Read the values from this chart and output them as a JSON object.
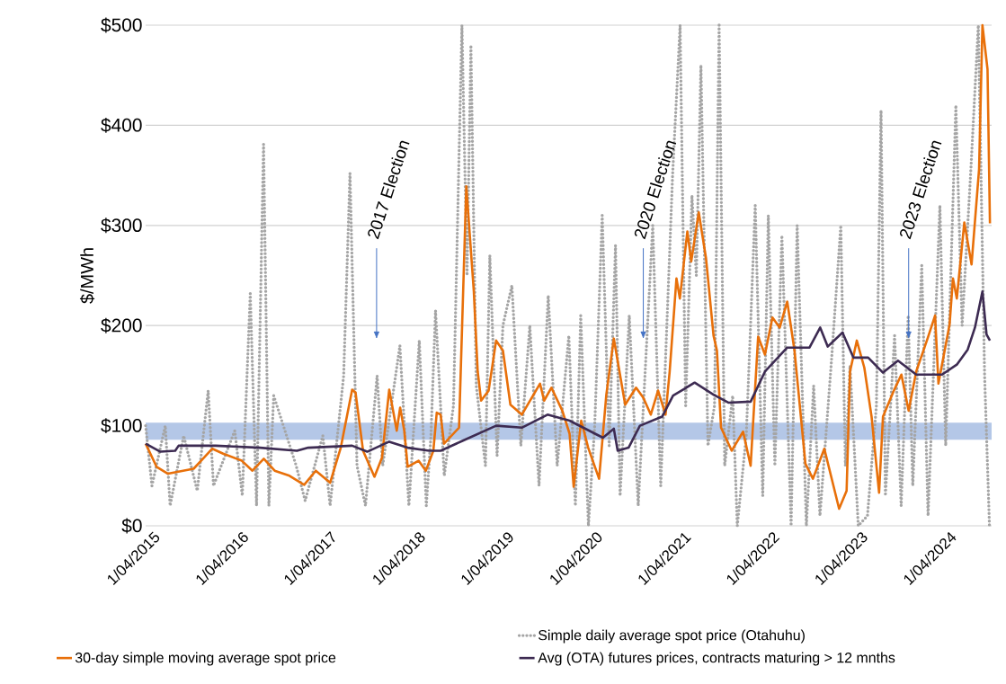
{
  "chart_data": {
    "type": "line",
    "ylabel": "$/MWh",
    "xlim": [
      "2015-03-01",
      "2024-09-22"
    ],
    "ylim": [
      0,
      500
    ],
    "xticks": [
      {
        "value": "2015-04-01",
        "label": "1/04/2015"
      },
      {
        "value": "2016-04-01",
        "label": "1/04/2016"
      },
      {
        "value": "2017-04-01",
        "label": "1/04/2017"
      },
      {
        "value": "2018-04-01",
        "label": "1/04/2018"
      },
      {
        "value": "2019-04-01",
        "label": "1/04/2019"
      },
      {
        "value": "2020-04-01",
        "label": "1/04/2020"
      },
      {
        "value": "2021-04-01",
        "label": "1/04/2021"
      },
      {
        "value": "2022-04-01",
        "label": "1/04/2022"
      },
      {
        "value": "2023-04-01",
        "label": "1/04/2023"
      },
      {
        "value": "2024-04-01",
        "label": "1/04/2024"
      }
    ],
    "yticks": [
      {
        "value": 0,
        "label": "$0"
      },
      {
        "value": 100,
        "label": "$100"
      },
      {
        "value": 200,
        "label": "$200"
      },
      {
        "value": 300,
        "label": "$300"
      },
      {
        "value": 400,
        "label": "$400"
      },
      {
        "value": 500,
        "label": "$500"
      }
    ],
    "grid": "y",
    "legend": "bottom",
    "marker": "none",
    "bands": [
      {
        "axis": "y",
        "from": 86,
        "to": 103,
        "color": "#b4c7e7"
      }
    ],
    "annotations": [
      "2017 Election",
      {
        "text": "2020 Election",
        "x": "2020-10-15",
        "y": 186
      },
      {
        "text": "2023 Election",
        "x": "2023-10-15",
        "y": 186
      }
    ],
    "series": [
      {
        "name": "Simple daily average spot price (Otahuhu)",
        "color": "#a5a5a5",
        "line_style": "dotted",
        "x": [
          "2015-03-01",
          "2015-03-27",
          "2015-05-21",
          "2015-06-10",
          "2015-08-05",
          "2015-09-30",
          "2015-11-14",
          "2015-12-06",
          "2016-03-03",
          "2016-04-03",
          "2016-05-06",
          "2016-06-01",
          "2016-06-30",
          "2016-07-22",
          "2016-08-11",
          "2016-11-12",
          "2016-12-19",
          "2017-03-02",
          "2017-04-01",
          "2017-05-27",
          "2017-06-22",
          "2017-07-21",
          "2017-08-25",
          "2017-10-12",
          "2017-11-04",
          "2018-01-14",
          "2018-02-20",
          "2018-04-04",
          "2018-05-03",
          "2018-05-22",
          "2018-06-10",
          "2018-07-16",
          "2018-08-23",
          "2018-09-27",
          "2018-10-18",
          "2018-11-03",
          "2018-11-25",
          "2019-01-02",
          "2019-01-20",
          "2019-02-19",
          "2019-03-15",
          "2019-04-21",
          "2019-05-28",
          "2019-07-04",
          "2019-08-11",
          "2019-09-18",
          "2019-10-25",
          "2019-12-12",
          "2020-01-08",
          "2020-01-30",
          "2020-03-02",
          "2020-03-28",
          "2020-04-28",
          "2020-05-27",
          "2020-06-22",
          "2020-07-11",
          "2020-08-18",
          "2020-09-24",
          "2020-11-23",
          "2020-12-26",
          "2021-02-13",
          "2021-03-16",
          "2021-04-08",
          "2021-05-04",
          "2021-05-22",
          "2021-06-10",
          "2021-07-09",
          "2021-08-05",
          "2021-08-24",
          "2021-09-16",
          "2021-10-19",
          "2021-11-07",
          "2021-12-14",
          "2022-01-20",
          "2022-02-20",
          "2022-03-15",
          "2022-04-11",
          "2022-05-10",
          "2022-06-17",
          "2022-07-12",
          "2022-08-19",
          "2022-09-18",
          "2022-10-14",
          "2022-12-02",
          "2023-01-08",
          "2023-01-27",
          "2023-02-15",
          "2023-03-21",
          "2023-04-28",
          "2023-06-04",
          "2023-06-23",
          "2023-07-11",
          "2023-08-18",
          "2023-09-14",
          "2023-10-13",
          "2023-11-01",
          "2023-12-08",
          "2024-01-03",
          "2024-02-21",
          "2024-03-16",
          "2024-04-27",
          "2024-05-23",
          "2024-06-29",
          "2024-07-29",
          "2024-08-24",
          "2024-09-13"
        ],
        "values": [
          100,
          40,
          100,
          20,
          90,
          35,
          135,
          40,
          95,
          30,
          232,
          20,
          381,
          20,
          130,
          60,
          25,
          90,
          20,
          150,
          352,
          60,
          20,
          150,
          60,
          180,
          20,
          185,
          20,
          90,
          215,
          50,
          120,
          500,
          250,
          480,
          140,
          60,
          270,
          70,
          200,
          240,
          80,
          200,
          40,
          230,
          60,
          190,
          20,
          210,
          0,
          100,
          310,
          80,
          280,
          30,
          210,
          20,
          300,
          40,
          350,
          500,
          120,
          330,
          250,
          460,
          80,
          120,
          500,
          60,
          130,
          0,
          90,
          320,
          30,
          310,
          60,
          290,
          0,
          300,
          0,
          140,
          10,
          170,
          300,
          60,
          160,
          0,
          10,
          120,
          415,
          30,
          190,
          20,
          210,
          40,
          260,
          10,
          320,
          80,
          420,
          200,
          360,
          500,
          150,
          0
        ]
      },
      {
        "name": "30-day simple moving average spot price",
        "color": "#e8700a",
        "line_style": "solid",
        "x": [
          "2015-03-01",
          "2015-04-15",
          "2015-06-01",
          "2015-09-15",
          "2015-12-01",
          "2016-01-15",
          "2016-04-01",
          "2016-05-15",
          "2016-07-01",
          "2016-08-15",
          "2016-10-15",
          "2016-12-15",
          "2017-02-01",
          "2017-04-01",
          "2017-05-15",
          "2017-07-01",
          "2017-07-15",
          "2017-08-15",
          "2017-10-01",
          "2017-11-01",
          "2017-12-01",
          "2018-01-01",
          "2018-01-15",
          "2018-02-01",
          "2018-02-15",
          "2018-04-01",
          "2018-05-01",
          "2018-06-01",
          "2018-06-15",
          "2018-07-01",
          "2018-07-15",
          "2018-09-15",
          "2018-10-15",
          "2018-11-15",
          "2018-12-01",
          "2018-12-15",
          "2019-01-15",
          "2019-02-15",
          "2019-03-15",
          "2019-04-15",
          "2019-06-01",
          "2019-08-15",
          "2019-09-01",
          "2019-10-01",
          "2019-11-15",
          "2019-12-15",
          "2020-01-01",
          "2020-02-01",
          "2020-03-01",
          "2020-04-15",
          "2020-05-15",
          "2020-06-15",
          "2020-08-01",
          "2020-09-15",
          "2020-10-15",
          "2020-11-15",
          "2020-12-15",
          "2021-01-15",
          "2021-02-01",
          "2021-03-01",
          "2021-03-15",
          "2021-04-15",
          "2021-05-01",
          "2021-06-01",
          "2021-07-01",
          "2021-08-01",
          "2021-08-15",
          "2021-09-01",
          "2021-10-15",
          "2021-12-01",
          "2022-01-01",
          "2022-02-01",
          "2022-03-01",
          "2022-04-01",
          "2022-05-01",
          "2022-06-01",
          "2022-07-01",
          "2022-08-15",
          "2022-09-15",
          "2022-11-01",
          "2023-01-01",
          "2023-02-01",
          "2023-02-15",
          "2023-03-15",
          "2023-04-15",
          "2023-05-15",
          "2023-06-15",
          "2023-07-01",
          "2023-08-15",
          "2023-09-15",
          "2023-10-15",
          "2023-11-15",
          "2024-01-01",
          "2024-02-01",
          "2024-02-15",
          "2024-04-01",
          "2024-04-15",
          "2024-05-01",
          "2024-06-01",
          "2024-07-01",
          "2024-08-01",
          "2024-08-15",
          "2024-09-05",
          "2024-09-15"
        ],
        "values": [
          82,
          59,
          52,
          57,
          77,
          72,
          65,
          55,
          67,
          55,
          50,
          41,
          55,
          43,
          78,
          136,
          133,
          75,
          49,
          68,
          136,
          95,
          118,
          95,
          59,
          65,
          55,
          75,
          113,
          111,
          82,
          98,
          339,
          234,
          154,
          125,
          135,
          185,
          175,
          121,
          111,
          142,
          125,
          138,
          115,
          92,
          39,
          105,
          78,
          47,
          131,
          187,
          121,
          138,
          128,
          111,
          135,
          111,
          154,
          247,
          227,
          294,
          264,
          313,
          267,
          190,
          175,
          98,
          75,
          94,
          60,
          189,
          171,
          208,
          198,
          224,
          175,
          62,
          47,
          77,
          17,
          35,
          154,
          185,
          158,
          109,
          33,
          109,
          135,
          151,
          115,
          154,
          187,
          210,
          142,
          201,
          247,
          227,
          303,
          261,
          356,
          500,
          456,
          302
        ]
      },
      {
        "name": "Avg (OTA) futures prices, contracts maturing > 12 mnths",
        "color": "#3d2b52",
        "line_style": "solid",
        "x": [
          "2015-03-01",
          "2015-05-01",
          "2015-07-01",
          "2015-07-15",
          "2015-12-15",
          "2016-06-15",
          "2016-11-15",
          "2017-01-01",
          "2017-07-01",
          "2017-09-01",
          "2017-12-01",
          "2018-02-15",
          "2018-05-15",
          "2018-07-01",
          "2018-10-01",
          "2019-02-15",
          "2019-06-01",
          "2019-09-15",
          "2019-12-15",
          "2020-05-01",
          "2020-06-15",
          "2020-07-01",
          "2020-08-15",
          "2020-10-01",
          "2021-01-01",
          "2021-02-15",
          "2021-05-15",
          "2021-08-01",
          "2021-10-01",
          "2022-01-01",
          "2022-03-01",
          "2022-06-01",
          "2022-09-01",
          "2022-10-15",
          "2022-11-15",
          "2023-01-15",
          "2023-03-01",
          "2023-05-01",
          "2023-07-01",
          "2023-09-01",
          "2023-11-15",
          "2024-03-01",
          "2024-05-01",
          "2024-06-15",
          "2024-07-15",
          "2024-08-15",
          "2024-09-01",
          "2024-09-15"
        ],
        "values": [
          82,
          74,
          75,
          80,
          80,
          78,
          75,
          78,
          80,
          74,
          84,
          78,
          75,
          75,
          85,
          100,
          98,
          111,
          105,
          88,
          97,
          75,
          78,
          100,
          109,
          130,
          143,
          131,
          123,
          124,
          154,
          178,
          178,
          198,
          179,
          193,
          168,
          168,
          153,
          165,
          151,
          151,
          161,
          176,
          198,
          234,
          191,
          185
        ]
      }
    ]
  }
}
